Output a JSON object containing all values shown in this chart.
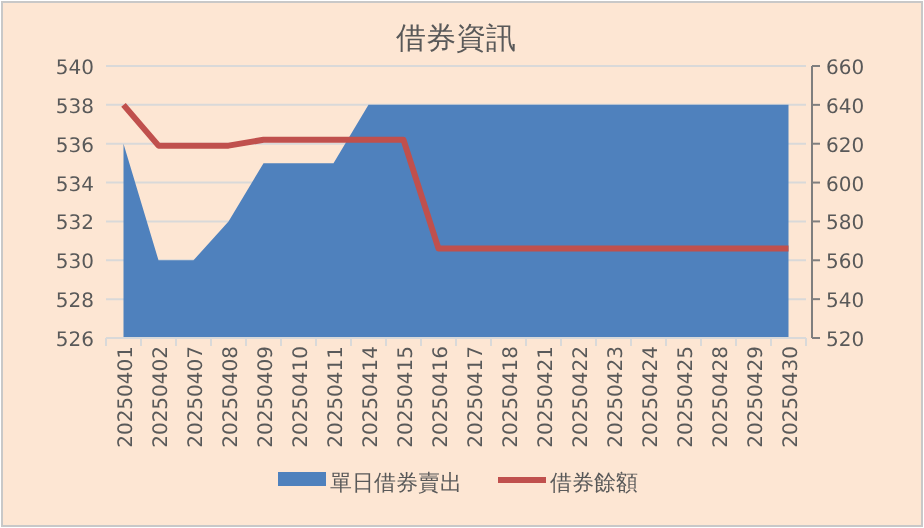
{
  "chart_data": {
    "type": "area",
    "title": "借券資訊",
    "categories": [
      "20250401",
      "20250402",
      "20250407",
      "20250408",
      "20250409",
      "20250410",
      "20250411",
      "20250414",
      "20250415",
      "20250416",
      "20250417",
      "20250418",
      "20250421",
      "20250422",
      "20250423",
      "20250424",
      "20250425",
      "20250428",
      "20250429",
      "20250430"
    ],
    "series": [
      {
        "name": "單日借券賣出",
        "color": "#4f81bd",
        "values": [
          536,
          530,
          530,
          532,
          535,
          535,
          535,
          538,
          538,
          538,
          538,
          538,
          538,
          538,
          538,
          538,
          538,
          538,
          538,
          538
        ]
      },
      {
        "name": "借券餘額",
        "type": "line",
        "axis": "y2",
        "color": "#c0504d",
        "values": [
          640,
          619,
          619,
          619,
          622,
          622,
          622,
          622,
          622,
          566,
          566,
          566,
          566,
          566,
          566,
          566,
          566,
          566,
          566,
          566
        ]
      }
    ],
    "ylim": [
      526,
      540
    ],
    "yticks": [
      526,
      528,
      530,
      532,
      534,
      536,
      538,
      540
    ],
    "y2lim": [
      520,
      660
    ],
    "y2ticks": [
      520,
      540,
      560,
      580,
      600,
      620,
      640,
      660
    ],
    "grid": "y",
    "legend": "bottom"
  }
}
